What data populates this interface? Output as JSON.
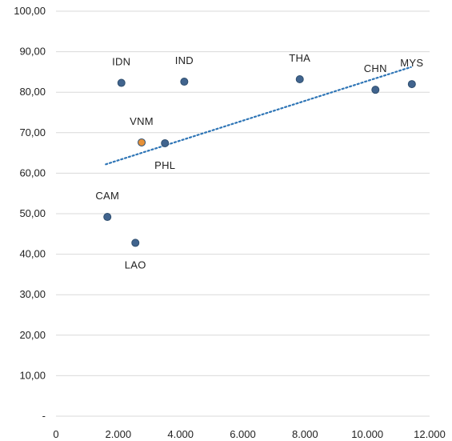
{
  "chart_data": {
    "type": "scatter",
    "title": "",
    "xlabel": "",
    "ylabel": "",
    "xlim": [
      0,
      12000
    ],
    "ylim": [
      0,
      100
    ],
    "grid": "horizontal",
    "legend": "none",
    "x_ticks": [
      "0",
      "2.000",
      "4.000",
      "6.000",
      "8.000",
      "10.000",
      "12.000"
    ],
    "y_ticks": [
      "-",
      "10,00",
      "20,00",
      "30,00",
      "40,00",
      "50,00",
      "60,00",
      "70,00",
      "80,00",
      "90,00",
      "100,00"
    ],
    "points": [
      {
        "label": "IDN",
        "x": 2100,
        "y": 82.3,
        "color": "#41648e",
        "label_pos": "above"
      },
      {
        "label": "IND",
        "x": 4120,
        "y": 82.6,
        "color": "#41648e",
        "label_pos": "above"
      },
      {
        "label": "THA",
        "x": 7830,
        "y": 83.2,
        "color": "#41648e",
        "label_pos": "above"
      },
      {
        "label": "CHN",
        "x": 10260,
        "y": 80.6,
        "color": "#41648e",
        "label_pos": "above"
      },
      {
        "label": "MYS",
        "x": 11430,
        "y": 82.0,
        "color": "#41648e",
        "label_pos": "above"
      },
      {
        "label": "VNM",
        "x": 2750,
        "y": 67.6,
        "color": "#e69138",
        "label_pos": "above"
      },
      {
        "label": "PHL",
        "x": 3500,
        "y": 67.4,
        "color": "#41648e",
        "label_pos": "below"
      },
      {
        "label": "CAM",
        "x": 1650,
        "y": 49.2,
        "color": "#41648e",
        "label_pos": "above"
      },
      {
        "label": "LAO",
        "x": 2550,
        "y": 42.8,
        "color": "#41648e",
        "label_pos": "below"
      }
    ],
    "trendline": {
      "x": [
        1600,
        11400
      ],
      "y": [
        62.2,
        86.2
      ],
      "style": "dotted",
      "color": "#2e75b6"
    }
  }
}
